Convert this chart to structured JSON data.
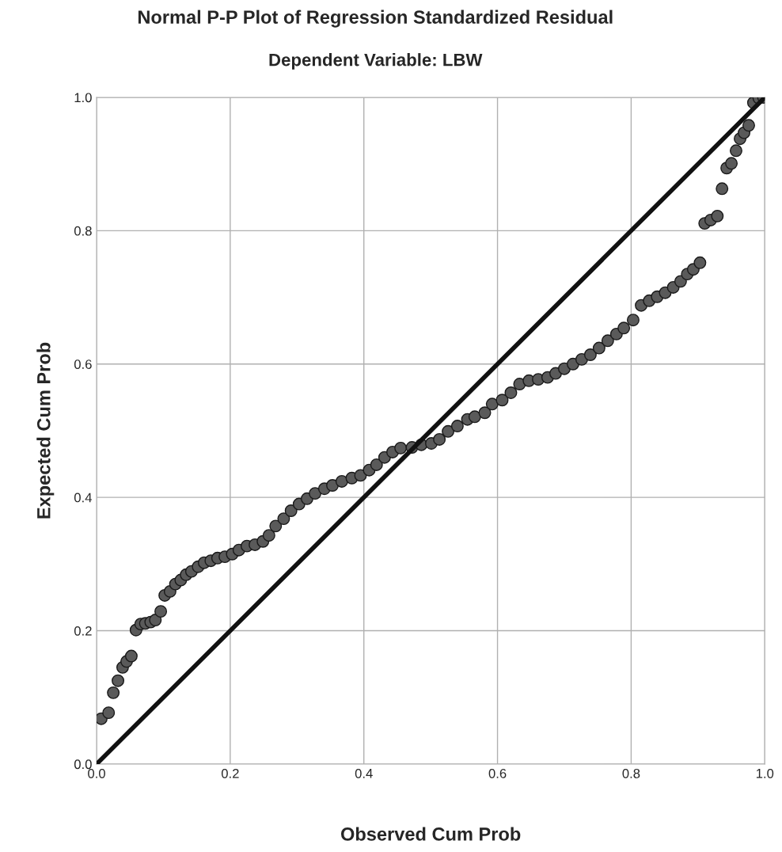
{
  "chart_data": {
    "type": "scatter",
    "title": "Normal P-P Plot of Regression Standardized Residual",
    "subtitle": "Dependent Variable: LBW",
    "xlabel": "Observed Cum Prob",
    "ylabel": "Expected Cum Prob",
    "xlim": [
      0,
      1
    ],
    "ylim": [
      0,
      1
    ],
    "xticks": [
      {
        "value": 0,
        "label": "0.0"
      },
      0.2,
      0.4,
      0.6,
      0.8,
      {
        "value": 1,
        "label": "1.0"
      }
    ],
    "yticks": [
      {
        "value": 0,
        "label": "0.0"
      },
      0.2,
      0.4,
      0.6,
      0.8,
      {
        "value": 1,
        "label": "1.0"
      }
    ],
    "grid": true,
    "marker": "circle",
    "series": [
      {
        "color": "#5a5a5a",
        "x": [
          0.007,
          0.018,
          0.025,
          0.032,
          0.039,
          0.045,
          0.052,
          0.059,
          0.066,
          0.073,
          0.081,
          0.088,
          0.096,
          0.102,
          0.11,
          0.118,
          0.126,
          0.134,
          0.142,
          0.152,
          0.161,
          0.171,
          0.181,
          0.192,
          0.203,
          0.213,
          0.225,
          0.237,
          0.249,
          0.258,
          0.268,
          0.28,
          0.291,
          0.303,
          0.315,
          0.327,
          0.341,
          0.353,
          0.367,
          0.382,
          0.395,
          0.408,
          0.419,
          0.431,
          0.443,
          0.455,
          0.472,
          0.486,
          0.501,
          0.513,
          0.526,
          0.54,
          0.555,
          0.566,
          0.581,
          0.592,
          0.607,
          0.62,
          0.633,
          0.647,
          0.661,
          0.675,
          0.687,
          0.7,
          0.713,
          0.726,
          0.739,
          0.752,
          0.765,
          0.778,
          0.789,
          0.803,
          0.815,
          0.827,
          0.839,
          0.851,
          0.863,
          0.874,
          0.884,
          0.893,
          0.903,
          0.91,
          0.919,
          0.929,
          0.936,
          0.943,
          0.95,
          0.957,
          0.963,
          0.969,
          0.976,
          0.983,
          0.991,
          0.998
        ],
        "values": [
          0.068,
          0.077,
          0.107,
          0.125,
          0.145,
          0.154,
          0.162,
          0.201,
          0.21,
          0.211,
          0.213,
          0.216,
          0.229,
          0.253,
          0.259,
          0.27,
          0.276,
          0.284,
          0.289,
          0.296,
          0.302,
          0.305,
          0.309,
          0.311,
          0.315,
          0.321,
          0.327,
          0.329,
          0.334,
          0.343,
          0.357,
          0.368,
          0.38,
          0.39,
          0.398,
          0.406,
          0.413,
          0.418,
          0.424,
          0.429,
          0.433,
          0.441,
          0.449,
          0.46,
          0.468,
          0.474,
          0.475,
          0.479,
          0.481,
          0.487,
          0.499,
          0.507,
          0.517,
          0.521,
          0.527,
          0.54,
          0.546,
          0.557,
          0.57,
          0.575,
          0.577,
          0.58,
          0.586,
          0.593,
          0.6,
          0.607,
          0.614,
          0.624,
          0.635,
          0.645,
          0.654,
          0.666,
          0.688,
          0.695,
          0.701,
          0.707,
          0.715,
          0.724,
          0.735,
          0.742,
          0.752,
          0.811,
          0.816,
          0.822,
          0.863,
          0.894,
          0.901,
          0.92,
          0.938,
          0.947,
          0.958,
          0.992,
          0.999,
          1.0
        ]
      },
      {
        "type": "line",
        "color": "#111111",
        "marker": "none",
        "x": [
          0,
          1
        ],
        "values": [
          0,
          1
        ]
      }
    ]
  }
}
